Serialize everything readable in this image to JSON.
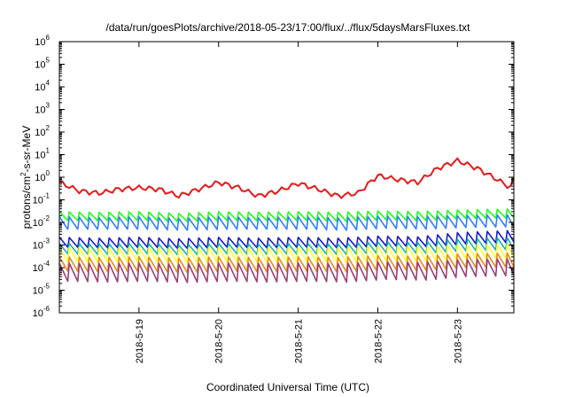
{
  "chart_data": {
    "type": "line",
    "title": "/data/run/goesPlots/archive/2018-05-23/17:00/flux/../flux/5daysMarsFluxes.txt",
    "xlabel": "Coordinated Universal Time (UTC)",
    "ylabel": {
      "base": "protons/cm",
      "sup": "2",
      "rest": "-s-sr-MeV"
    },
    "yscale": "log",
    "ylim": [
      "1e-6",
      "1e6"
    ],
    "xlim": [
      "2018-05-18T00:00",
      "2018-05-23T17:00"
    ],
    "grid": false,
    "legend": "none",
    "x_ticks": [
      "2018-5-19",
      "2018-5-20",
      "2018-5-21",
      "2018-5-22",
      "2018-5-23"
    ],
    "y_ticks": [
      {
        "base": "10",
        "exp": "-6"
      },
      {
        "base": "10",
        "exp": "-5"
      },
      {
        "base": "10",
        "exp": "-4"
      },
      {
        "base": "10",
        "exp": "-3"
      },
      {
        "base": "10",
        "exp": "-2"
      },
      {
        "base": "10",
        "exp": "-1"
      },
      {
        "base": "10",
        "exp": "0"
      },
      {
        "base": "10",
        "exp": "1"
      },
      {
        "base": "10",
        "exp": "2"
      },
      {
        "base": "10",
        "exp": "3"
      },
      {
        "base": "10",
        "exp": "4"
      },
      {
        "base": "10",
        "exp": "5"
      },
      {
        "base": "10",
        "exp": "6"
      }
    ],
    "series": [
      {
        "color": "#e51a1a",
        "kind": "smooth",
        "x": [
          "2018-05-18T00:00",
          "2018-05-18T06:00",
          "2018-05-18T12:00",
          "2018-05-18T18:00",
          "2018-05-19T00:00",
          "2018-05-19T06:00",
          "2018-05-19T12:00",
          "2018-05-19T18:00",
          "2018-05-20T00:00",
          "2018-05-20T06:00",
          "2018-05-20T12:00",
          "2018-05-20T18:00",
          "2018-05-21T00:00",
          "2018-05-21T06:00",
          "2018-05-21T12:00",
          "2018-05-21T18:00",
          "2018-05-22T00:00",
          "2018-05-22T06:00",
          "2018-05-22T12:00",
          "2018-05-22T18:00",
          "2018-05-23T00:00",
          "2018-05-23T06:00",
          "2018-05-23T12:00",
          "2018-05-23T16:00",
          "2018-05-23T17:00"
        ],
        "y": [
          0.6,
          0.25,
          0.2,
          0.3,
          0.35,
          0.3,
          0.15,
          0.3,
          0.6,
          0.35,
          0.15,
          0.25,
          0.55,
          0.3,
          0.15,
          0.2,
          1.2,
          0.8,
          0.6,
          2.5,
          5.5,
          2.5,
          0.8,
          0.35,
          0.9
        ]
      },
      {
        "color": "#1aff1a",
        "kind": "sawtooth",
        "x": [
          "2018-05-18T00:00",
          "2018-05-18T12:00",
          "2018-05-19T00:00",
          "2018-05-19T12:00",
          "2018-05-20T00:00",
          "2018-05-20T12:00",
          "2018-05-21T00:00",
          "2018-05-21T12:00",
          "2018-05-22T00:00",
          "2018-05-22T12:00",
          "2018-05-23T00:00",
          "2018-05-23T17:00"
        ],
        "peak": [
          0.03,
          0.028,
          0.03,
          0.025,
          0.03,
          0.028,
          0.03,
          0.028,
          0.032,
          0.03,
          0.035,
          0.04
        ],
        "trough": [
          0.012,
          0.012,
          0.012,
          0.011,
          0.012,
          0.012,
          0.012,
          0.011,
          0.013,
          0.012,
          0.015,
          0.016
        ]
      },
      {
        "color": "#2f7fff",
        "kind": "sawtooth",
        "x": [
          "2018-05-18T00:00",
          "2018-05-18T12:00",
          "2018-05-19T00:00",
          "2018-05-19T12:00",
          "2018-05-20T00:00",
          "2018-05-20T12:00",
          "2018-05-21T00:00",
          "2018-05-21T12:00",
          "2018-05-22T00:00",
          "2018-05-22T12:00",
          "2018-05-23T00:00",
          "2018-05-23T17:00"
        ],
        "peak": [
          0.018,
          0.016,
          0.018,
          0.015,
          0.018,
          0.016,
          0.018,
          0.016,
          0.019,
          0.018,
          0.02,
          0.022
        ],
        "trough": [
          0.005,
          0.005,
          0.005,
          0.0045,
          0.005,
          0.005,
          0.005,
          0.0045,
          0.0055,
          0.005,
          0.006,
          0.0065
        ]
      },
      {
        "color": "#1a1acd",
        "kind": "sawtooth",
        "x": [
          "2018-05-18T00:00",
          "2018-05-18T12:00",
          "2018-05-19T00:00",
          "2018-05-19T12:00",
          "2018-05-20T00:00",
          "2018-05-20T12:00",
          "2018-05-21T00:00",
          "2018-05-21T12:00",
          "2018-05-22T00:00",
          "2018-05-22T12:00",
          "2018-05-23T00:00",
          "2018-05-23T17:00"
        ],
        "peak": [
          0.0022,
          0.002,
          0.0022,
          0.0019,
          0.0022,
          0.002,
          0.0022,
          0.002,
          0.0025,
          0.0023,
          0.0035,
          0.0045
        ],
        "trough": [
          0.0008,
          0.00075,
          0.0008,
          0.0007,
          0.0008,
          0.00075,
          0.0008,
          0.00075,
          0.0009,
          0.00085,
          0.0011,
          0.0014
        ]
      },
      {
        "color": "#1ab3a8",
        "kind": "sawtooth",
        "x": [
          "2018-05-18T00:00",
          "2018-05-18T12:00",
          "2018-05-19T00:00",
          "2018-05-19T12:00",
          "2018-05-20T00:00",
          "2018-05-20T12:00",
          "2018-05-21T00:00",
          "2018-05-21T12:00",
          "2018-05-22T00:00",
          "2018-05-22T12:00",
          "2018-05-23T00:00",
          "2018-05-23T17:00"
        ],
        "peak": [
          0.0012,
          0.0011,
          0.0012,
          0.001,
          0.0012,
          0.0011,
          0.0012,
          0.0011,
          0.0014,
          0.0013,
          0.0018,
          0.0022
        ],
        "trough": [
          0.0004,
          0.00038,
          0.0004,
          0.00036,
          0.0004,
          0.00038,
          0.0004,
          0.00038,
          0.00045,
          0.00042,
          0.00055,
          0.00065
        ]
      },
      {
        "color": "#ffff33",
        "kind": "sawtooth",
        "x": [
          "2018-05-18T00:00",
          "2018-05-18T12:00",
          "2018-05-19T00:00",
          "2018-05-19T12:00",
          "2018-05-20T00:00",
          "2018-05-20T12:00",
          "2018-05-21T00:00",
          "2018-05-21T12:00",
          "2018-05-22T00:00",
          "2018-05-22T12:00",
          "2018-05-23T00:00",
          "2018-05-23T17:00"
        ],
        "peak": [
          0.0008,
          0.00075,
          0.0008,
          0.0007,
          0.0008,
          0.00075,
          0.0008,
          0.00075,
          0.0009,
          0.00085,
          0.001,
          0.0011
        ],
        "trough": [
          0.00018,
          0.00017,
          0.00018,
          0.00016,
          0.00018,
          0.00017,
          0.00018,
          0.00017,
          0.0002,
          0.00019,
          0.00025,
          0.00028
        ]
      },
      {
        "color": "#e68a1a",
        "kind": "sawtooth",
        "x": [
          "2018-05-18T00:00",
          "2018-05-18T12:00",
          "2018-05-19T00:00",
          "2018-05-19T12:00",
          "2018-05-20T00:00",
          "2018-05-20T12:00",
          "2018-05-21T00:00",
          "2018-05-21T12:00",
          "2018-05-22T00:00",
          "2018-05-22T12:00",
          "2018-05-23T00:00",
          "2018-05-23T17:00"
        ],
        "peak": [
          0.0003,
          0.00028,
          0.0003,
          0.00026,
          0.0003,
          0.00028,
          0.0003,
          0.00028,
          0.00034,
          0.00032,
          0.0004,
          0.00045
        ],
        "trough": [
          7e-05,
          6.5e-05,
          7e-05,
          6e-05,
          7e-05,
          6.5e-05,
          7e-05,
          6.5e-05,
          8e-05,
          7.5e-05,
          0.0001,
          0.00011
        ]
      },
      {
        "color": "#9a3f7a",
        "kind": "sawtooth",
        "x": [
          "2018-05-18T00:00",
          "2018-05-18T12:00",
          "2018-05-19T00:00",
          "2018-05-19T12:00",
          "2018-05-20T00:00",
          "2018-05-20T12:00",
          "2018-05-21T00:00",
          "2018-05-21T12:00",
          "2018-05-22T00:00",
          "2018-05-22T12:00",
          "2018-05-23T00:00",
          "2018-05-23T17:00"
        ],
        "peak": [
          0.00016,
          0.00015,
          0.00016,
          0.00014,
          0.00016,
          0.00015,
          0.00016,
          0.00015,
          0.00018,
          0.00017,
          0.00022,
          0.00025
        ],
        "trough": [
          2.5e-05,
          2.3e-05,
          2.5e-05,
          2.2e-05,
          2.5e-05,
          2.3e-05,
          2.5e-05,
          2.3e-05,
          3e-05,
          2.8e-05,
          4e-05,
          4.5e-05
        ]
      }
    ]
  }
}
